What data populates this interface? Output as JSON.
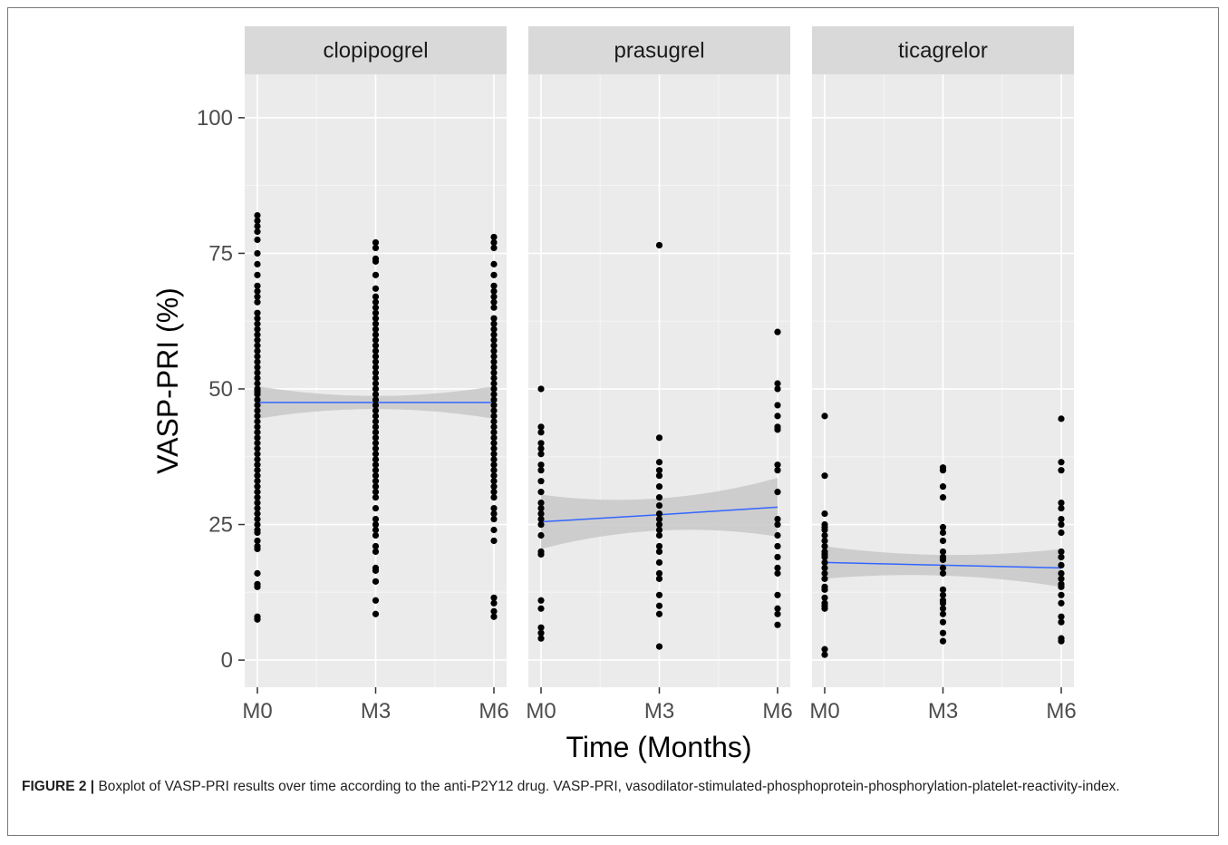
{
  "caption": {
    "label": "FIGURE 2 |",
    "text": " Boxplot of VASP-PRI results over time according to the anti-P2Y12 drug. VASP-PRI, vasodilator-stimulated-phosphoprotein-phosphorylation-platelet-reactivity-index."
  },
  "chart_data": {
    "type": "scatter",
    "xlabel": "Time (Months)",
    "ylabel": "VASP-PRI (%)",
    "categories": [
      "M0",
      "M3",
      "M6"
    ],
    "ylim": [
      -5,
      108
    ],
    "yticks": [
      0,
      25,
      50,
      75,
      100
    ],
    "grid": true,
    "colors": {
      "panel_bg": "#ebebeb",
      "strip_bg": "#d9d9d9",
      "grid_major": "#ffffff",
      "grid_minor": "#f5f5f5",
      "points": "#000000",
      "trend": "#3366ff",
      "ribbon": "#c8c8c8"
    },
    "panels": [
      {
        "name": "clopipogrel",
        "points": {
          "M0": [
            82,
            81,
            80,
            79,
            77.5,
            75,
            73,
            71,
            69,
            68,
            67,
            66,
            64,
            63,
            62,
            61,
            60,
            59,
            58,
            57,
            56,
            55,
            54,
            53,
            52,
            51,
            50,
            49.5,
            49,
            48,
            47,
            46,
            45,
            44,
            43,
            42,
            41,
            40,
            39,
            38,
            37,
            36,
            35,
            34,
            33,
            32,
            31,
            30,
            29,
            28,
            27,
            26,
            25,
            24,
            23.5,
            22,
            21,
            20.5,
            16,
            14,
            13.5,
            8,
            7.5
          ],
          "M3": [
            77,
            76,
            74,
            73.5,
            71,
            68.5,
            67,
            66,
            65,
            64,
            63,
            62,
            61,
            60,
            59,
            58,
            57,
            56,
            55,
            54,
            53,
            52,
            51,
            50,
            49,
            48,
            47,
            46,
            45,
            44,
            43,
            42,
            41,
            40,
            39,
            38,
            37,
            36,
            35,
            34,
            33,
            32,
            31,
            30,
            28,
            26,
            25,
            24,
            23,
            21,
            20,
            17,
            16.5,
            14.5,
            11,
            8.5
          ],
          "M6": [
            78,
            77,
            76,
            73,
            71,
            69,
            68,
            67,
            66,
            65,
            63,
            62,
            61,
            60,
            59,
            58,
            57,
            56,
            55,
            54,
            53,
            52,
            51,
            50,
            49,
            48,
            47,
            46,
            45,
            44,
            43,
            42,
            41,
            40,
            39,
            38,
            37,
            36,
            35,
            34,
            33,
            32,
            31,
            30,
            28,
            27,
            26,
            24,
            22,
            11.5,
            10.5,
            9,
            8
          ]
        },
        "trend": [
          47.5,
          47.5,
          47.5
        ],
        "ribbon_low": [
          44.5,
          46.3,
          44.5
        ],
        "ribbon_high": [
          50.5,
          48.7,
          50.5
        ]
      },
      {
        "name": "prasugrel",
        "points": {
          "M0": [
            50,
            43,
            42,
            40,
            39,
            38,
            36,
            35,
            33,
            31,
            29,
            28,
            27,
            26,
            25,
            23,
            20,
            19.5,
            11,
            9.5,
            6,
            5,
            4
          ],
          "M3": [
            76.5,
            41,
            36.5,
            35,
            34,
            32,
            30,
            28.5,
            27,
            26,
            25,
            24,
            23,
            21,
            20,
            18,
            16,
            15,
            12,
            10,
            8.5,
            2.5
          ],
          "M6": [
            60.5,
            51,
            50,
            47,
            45,
            43,
            42.5,
            36,
            35,
            31,
            26,
            25,
            23,
            21,
            19,
            17,
            16,
            12,
            9.5,
            8.5,
            6.5
          ]
        },
        "trend": [
          25.5,
          26.8,
          28.2
        ],
        "ribbon_low": [
          20.5,
          23.9,
          22.8
        ],
        "ribbon_high": [
          30.5,
          29.8,
          33.6
        ]
      },
      {
        "name": "ticagrelor",
        "points": {
          "M0": [
            45,
            34,
            27,
            25,
            24.5,
            24,
            23,
            22,
            21,
            20,
            19.5,
            19,
            18,
            17,
            16,
            15,
            13.5,
            13,
            11.5,
            10.5,
            10,
            9.5,
            2,
            1
          ],
          "M3": [
            35.5,
            35,
            32,
            30,
            24.5,
            23.5,
            22,
            20,
            19,
            18.5,
            17,
            16,
            13,
            12,
            11,
            10.5,
            9.5,
            8.5,
            7,
            5,
            3.5
          ],
          "M6": [
            44.5,
            36.5,
            35,
            29,
            28,
            26,
            25,
            23.5,
            20,
            19,
            17.5,
            16,
            15,
            14,
            13.5,
            12,
            10.5,
            8,
            7,
            4,
            3.5
          ]
        },
        "trend": [
          18,
          17.5,
          17
        ],
        "ribbon_low": [
          15,
          15.6,
          13.5
        ],
        "ribbon_high": [
          21,
          19.4,
          20.5
        ]
      }
    ]
  }
}
